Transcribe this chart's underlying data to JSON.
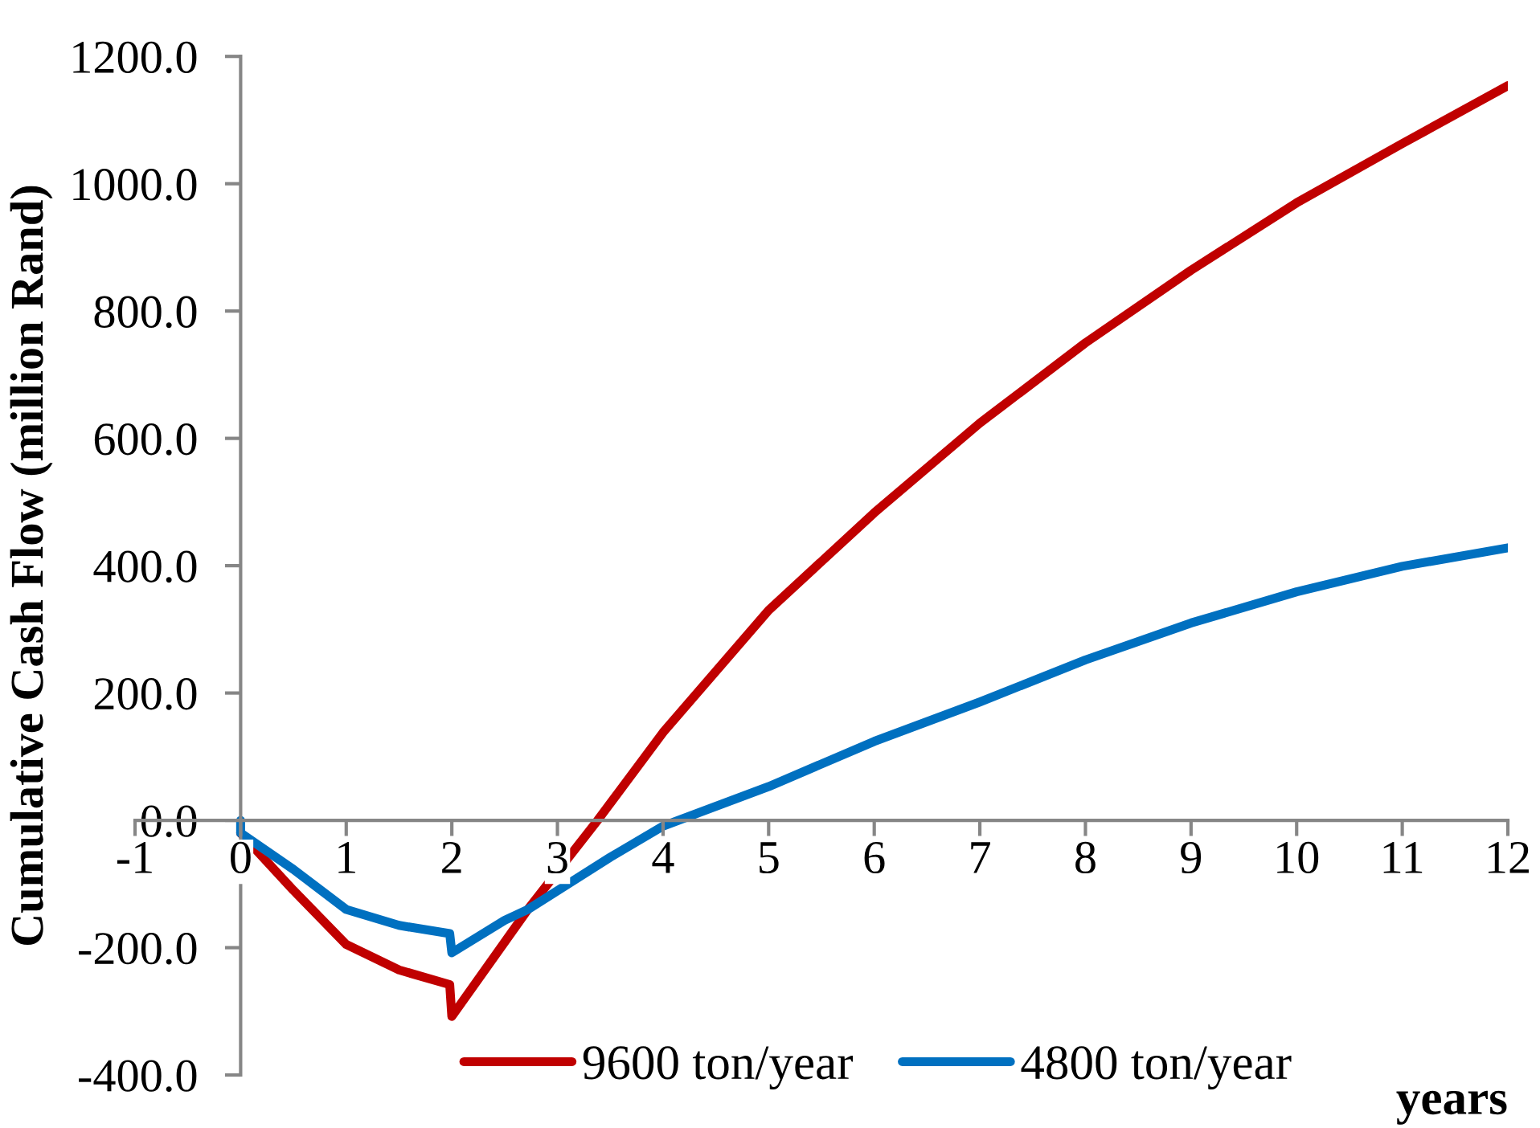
{
  "chart_data": {
    "type": "line",
    "ylabel": "Cumulative Cash Flow (million Rand)",
    "xlabel": "years",
    "xlim": [
      -1,
      12
    ],
    "xticks": [
      -1,
      0,
      1,
      2,
      3,
      4,
      5,
      6,
      7,
      8,
      9,
      10,
      11,
      12
    ],
    "ylim": [
      -400,
      1200
    ],
    "yticks": [
      {
        "value": -400,
        "label": "-400.0"
      },
      {
        "value": -200,
        "label": "-200.0"
      },
      {
        "value": 0,
        "label": "0.0"
      },
      {
        "value": 200,
        "label": "200.0"
      },
      {
        "value": 400,
        "label": "400.0"
      },
      {
        "value": 600,
        "label": "600.0"
      },
      {
        "value": 800,
        "label": "800.0"
      },
      {
        "value": 1000,
        "label": "1000.0"
      },
      {
        "value": 1200,
        "label": "1200.0"
      }
    ],
    "grid": false,
    "legend": "bottom",
    "marker": "none",
    "line_style": "solid",
    "series": [
      {
        "name": "9600 ton/year",
        "color": "#c00000",
        "x": [
          0,
          0.5,
          1,
          1.5,
          1.98,
          2,
          2.72,
          3.38,
          4,
          5,
          6,
          7,
          8,
          9,
          10,
          11,
          12
        ],
        "values": [
          -20,
          -110,
          -195,
          -235,
          -258,
          -308,
          -140,
          0,
          138,
          330,
          483,
          624,
          750,
          864,
          970,
          1063,
          1154
        ]
      },
      {
        "name": "4800 ton/year",
        "color": "#0070c0",
        "x": [
          0,
          0,
          0.5,
          1,
          1.5,
          1.98,
          2,
          2.5,
          2.72,
          3.5,
          4,
          5,
          6,
          7,
          8,
          9,
          10,
          11,
          12
        ],
        "values": [
          0,
          -20,
          -77,
          -140,
          -165,
          -178,
          -208,
          -157,
          -140,
          -58,
          -9,
          53,
          124,
          186,
          252,
          310,
          359,
          399,
          428
        ]
      }
    ]
  }
}
